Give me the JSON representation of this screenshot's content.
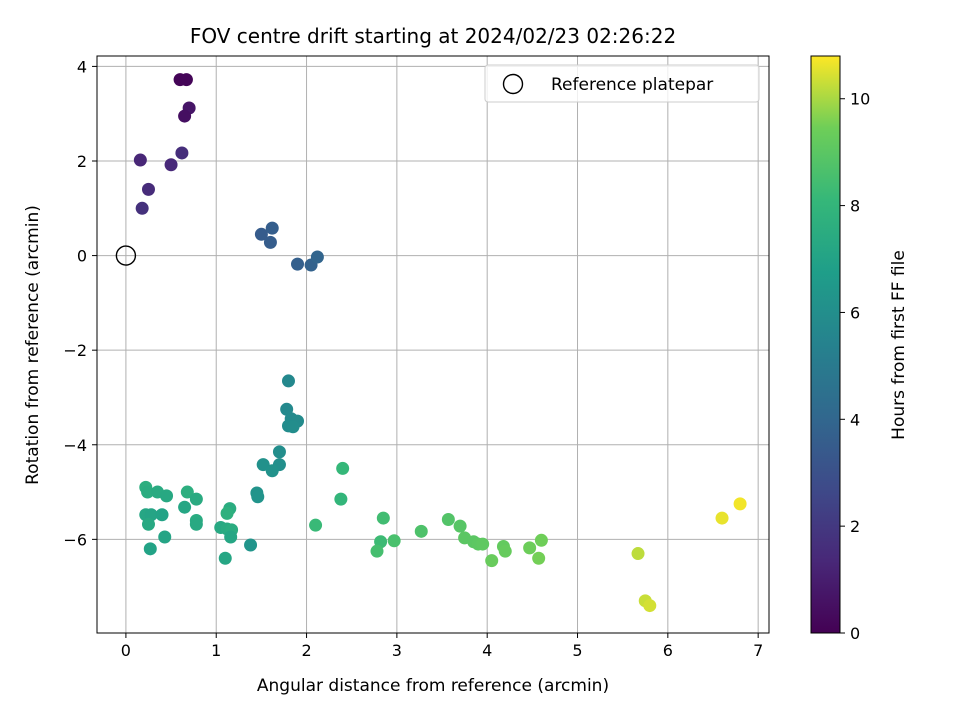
{
  "chart_data": {
    "type": "scatter",
    "title": "FOV centre drift starting at 2024/02/23 02:26:22",
    "xlabel": "Angular distance from reference (arcmin)",
    "ylabel": "Rotation from reference (arcmin)",
    "xlim": [
      -0.32,
      7.12
    ],
    "ylim": [
      -7.98,
      4.22
    ],
    "xticks": [
      0,
      1,
      2,
      3,
      4,
      5,
      6,
      7
    ],
    "yticks": [
      -6,
      -4,
      -2,
      0,
      2,
      4
    ],
    "grid": true,
    "legend": {
      "position": "top-right",
      "entries": [
        "Reference platepar"
      ]
    },
    "reference_point": {
      "x": 0,
      "y": 0,
      "label": "Reference platepar"
    },
    "colorbar": {
      "label": "Hours from first FF file",
      "colormap": "viridis",
      "range": [
        0,
        10.8
      ],
      "ticks": [
        0,
        2,
        4,
        6,
        8,
        10
      ]
    },
    "points": [
      {
        "x": 0.6,
        "y": 3.72,
        "c": 0.1
      },
      {
        "x": 0.67,
        "y": 3.72,
        "c": 0.15
      },
      {
        "x": 0.7,
        "y": 3.12,
        "c": 0.7
      },
      {
        "x": 0.65,
        "y": 2.95,
        "c": 0.5
      },
      {
        "x": 0.16,
        "y": 2.02,
        "c": 1.3
      },
      {
        "x": 0.62,
        "y": 2.17,
        "c": 1.6
      },
      {
        "x": 0.5,
        "y": 1.92,
        "c": 1.4
      },
      {
        "x": 0.25,
        "y": 1.4,
        "c": 1.5
      },
      {
        "x": 0.18,
        "y": 1.0,
        "c": 1.7
      },
      {
        "x": 1.5,
        "y": 0.45,
        "c": 3.5
      },
      {
        "x": 1.62,
        "y": 0.58,
        "c": 3.6
      },
      {
        "x": 1.6,
        "y": 0.28,
        "c": 3.55
      },
      {
        "x": 1.9,
        "y": -0.18,
        "c": 3.7
      },
      {
        "x": 2.05,
        "y": -0.2,
        "c": 3.8
      },
      {
        "x": 2.12,
        "y": -0.03,
        "c": 3.9
      },
      {
        "x": 1.8,
        "y": -2.65,
        "c": 5.7
      },
      {
        "x": 1.78,
        "y": -3.25,
        "c": 5.75
      },
      {
        "x": 1.83,
        "y": -3.45,
        "c": 5.8
      },
      {
        "x": 1.9,
        "y": -3.5,
        "c": 5.85
      },
      {
        "x": 1.8,
        "y": -3.6,
        "c": 5.9
      },
      {
        "x": 1.85,
        "y": -3.62,
        "c": 5.95
      },
      {
        "x": 1.7,
        "y": -4.15,
        "c": 6.0
      },
      {
        "x": 1.52,
        "y": -4.42,
        "c": 6.1
      },
      {
        "x": 1.7,
        "y": -4.42,
        "c": 6.05
      },
      {
        "x": 1.62,
        "y": -4.55,
        "c": 6.15
      },
      {
        "x": 1.45,
        "y": -5.02,
        "c": 6.2
      },
      {
        "x": 1.46,
        "y": -5.1,
        "c": 6.25
      },
      {
        "x": 1.38,
        "y": -6.12,
        "c": 6.3
      },
      {
        "x": 0.22,
        "y": -4.9,
        "c": 7.6
      },
      {
        "x": 0.24,
        "y": -5.0,
        "c": 7.5
      },
      {
        "x": 0.35,
        "y": -5.0,
        "c": 7.4
      },
      {
        "x": 0.45,
        "y": -5.08,
        "c": 7.3
      },
      {
        "x": 0.68,
        "y": -5.0,
        "c": 7.6
      },
      {
        "x": 0.78,
        "y": -5.15,
        "c": 7.4
      },
      {
        "x": 1.15,
        "y": -5.35,
        "c": 7.5
      },
      {
        "x": 0.22,
        "y": -5.48,
        "c": 7.2
      },
      {
        "x": 0.28,
        "y": -5.48,
        "c": 7.1
      },
      {
        "x": 0.4,
        "y": -5.48,
        "c": 7.0
      },
      {
        "x": 0.25,
        "y": -5.68,
        "c": 7.3
      },
      {
        "x": 0.65,
        "y": -5.32,
        "c": 7.2
      },
      {
        "x": 0.78,
        "y": -5.6,
        "c": 7.45
      },
      {
        "x": 0.78,
        "y": -5.68,
        "c": 7.35
      },
      {
        "x": 1.12,
        "y": -5.45,
        "c": 7.7
      },
      {
        "x": 1.05,
        "y": -5.75,
        "c": 7.3
      },
      {
        "x": 1.12,
        "y": -5.78,
        "c": 7.4
      },
      {
        "x": 1.17,
        "y": -5.8,
        "c": 7.5
      },
      {
        "x": 1.16,
        "y": -5.95,
        "c": 7.2
      },
      {
        "x": 0.43,
        "y": -5.95,
        "c": 7.1
      },
      {
        "x": 0.27,
        "y": -6.2,
        "c": 7.0
      },
      {
        "x": 1.1,
        "y": -6.4,
        "c": 7.2
      },
      {
        "x": 2.4,
        "y": -4.5,
        "c": 8.1
      },
      {
        "x": 2.38,
        "y": -5.15,
        "c": 8.0
      },
      {
        "x": 2.1,
        "y": -5.7,
        "c": 8.2
      },
      {
        "x": 2.85,
        "y": -5.55,
        "c": 8.4
      },
      {
        "x": 2.82,
        "y": -6.05,
        "c": 8.3
      },
      {
        "x": 2.78,
        "y": -6.25,
        "c": 8.5
      },
      {
        "x": 2.97,
        "y": -6.03,
        "c": 8.6
      },
      {
        "x": 3.27,
        "y": -5.83,
        "c": 8.7
      },
      {
        "x": 3.57,
        "y": -5.58,
        "c": 8.8
      },
      {
        "x": 3.7,
        "y": -5.72,
        "c": 8.9
      },
      {
        "x": 3.75,
        "y": -5.97,
        "c": 9.0
      },
      {
        "x": 3.85,
        "y": -6.05,
        "c": 9.0
      },
      {
        "x": 3.9,
        "y": -6.1,
        "c": 9.05
      },
      {
        "x": 3.95,
        "y": -6.1,
        "c": 9.1
      },
      {
        "x": 4.18,
        "y": -6.15,
        "c": 9.2
      },
      {
        "x": 4.2,
        "y": -6.25,
        "c": 9.25
      },
      {
        "x": 4.05,
        "y": -6.45,
        "c": 9.3
      },
      {
        "x": 4.47,
        "y": -6.18,
        "c": 9.4
      },
      {
        "x": 4.6,
        "y": -6.02,
        "c": 9.45
      },
      {
        "x": 4.57,
        "y": -6.4,
        "c": 9.5
      },
      {
        "x": 5.67,
        "y": -6.3,
        "c": 10.2
      },
      {
        "x": 5.75,
        "y": -7.3,
        "c": 10.3
      },
      {
        "x": 5.8,
        "y": -7.4,
        "c": 10.4
      },
      {
        "x": 6.6,
        "y": -5.55,
        "c": 10.6
      },
      {
        "x": 6.8,
        "y": -5.25,
        "c": 10.7
      }
    ]
  }
}
